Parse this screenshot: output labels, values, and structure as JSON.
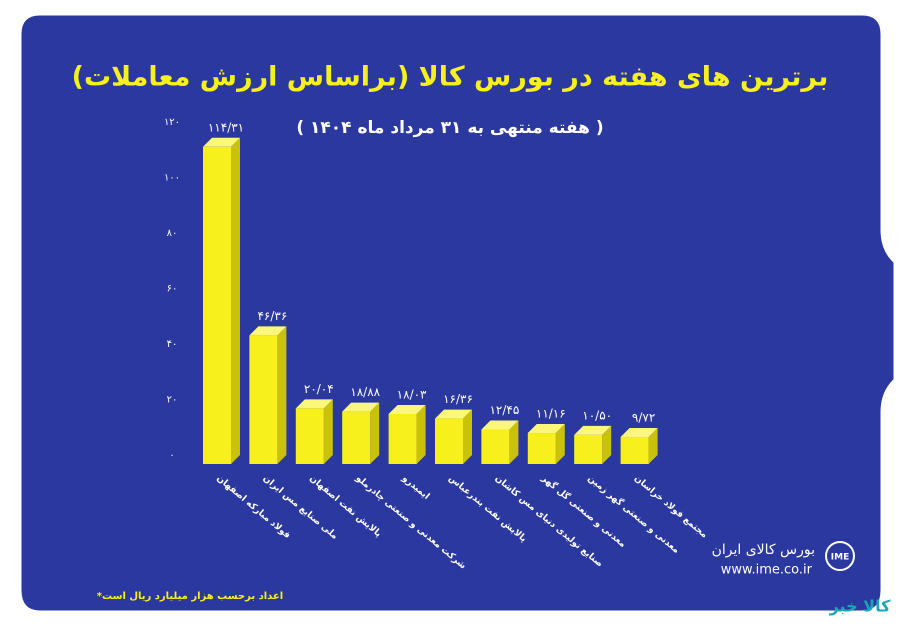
{
  "chart_data": {
    "type": "bar3d",
    "title": "برترین های هفته در بورس کالا (براساس ارزش معاملات)",
    "subtitle": "( هفته منتهی به ۳۱ مرداد ماه ۱۴۰۴ )",
    "categories": [
      "فولاد مبارکه اصفهان",
      "ملی صنایع مس ایران",
      "پالایش نفت اصفهان",
      "شرکت معدنی و صنعتی چادرملو",
      "ایمیدرو",
      "پالایش نفت بندرعباس",
      "صنایع تولیدی دنیای مس کاشان",
      "معدنی و صنعتی گل گهر",
      "معدنی و صنعتی گهر زمین",
      "مجتمع فولاد خراسان"
    ],
    "values": [
      114.31,
      46.36,
      20.04,
      18.88,
      18.03,
      16.36,
      12.45,
      11.16,
      10.5,
      9.72
    ],
    "value_labels": [
      "۱۱۴/۳۱",
      "۴۶/۳۶",
      "۲۰/۰۴",
      "۱۸/۸۸",
      "۱۸/۰۳",
      "۱۶/۳۶",
      "۱۲/۴۵",
      "۱۱/۱۶",
      "۱۰/۵۰",
      "۹/۷۲"
    ],
    "color": "#f7f01c",
    "ylim": [
      0,
      120
    ],
    "yticks": [
      {
        "value": 0,
        "label": "۰"
      },
      {
        "value": 20,
        "label": "۲۰"
      },
      {
        "value": 40,
        "label": "۴۰"
      },
      {
        "value": 60,
        "label": "۶۰"
      },
      {
        "value": 80,
        "label": "۸۰"
      },
      {
        "value": 100,
        "label": "۱۰۰"
      },
      {
        "value": 120,
        "label": "۱۲۰"
      }
    ],
    "grid": false,
    "footnote": "*اعداد برحسب هزار میلیارد ریال است",
    "logo_name": "بورس کالای ایران",
    "logo_url": "www.ime.co.ir",
    "logo_mark": "IME",
    "watermark": "کالا خبر"
  }
}
